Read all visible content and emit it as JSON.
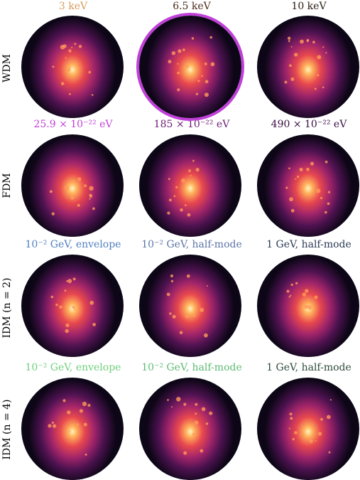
{
  "rows": [
    {
      "label": "WDM",
      "columns": [
        {
          "label": "3 keV",
          "color": "#d79b5b"
        },
        {
          "label": "6.5 keV",
          "color": "#4a2a1a"
        },
        {
          "label": "10 keV",
          "color": "#2a1a10"
        }
      ]
    },
    {
      "label": "FDM",
      "columns": [
        {
          "label": "25.9 × 10⁻²² eV",
          "color": "#c040d8"
        },
        {
          "label": "185 × 10⁻²² eV",
          "color": "#6a1c74"
        },
        {
          "label": "490 × 10⁻²² eV",
          "color": "#3a0e44"
        }
      ]
    },
    {
      "label": "IDM (n = 2)",
      "columns": [
        {
          "label": "10⁻² GeV, envelope",
          "color": "#4f7fc0"
        },
        {
          "label": "10⁻² GeV, half-mode",
          "color": "#5d74a6"
        },
        {
          "label": "1 GeV, half-mode",
          "color": "#2b3a55"
        }
      ]
    },
    {
      "label": "IDM (n = 4)",
      "columns": [
        {
          "label": "10⁻² GeV, envelope",
          "color": "#6fcf7a"
        },
        {
          "label": "10⁻² GeV, half-mode",
          "color": "#5dbb73"
        },
        {
          "label": "1 GeV, half-mode",
          "color": "#2e4a3a"
        }
      ]
    }
  ],
  "highlight": {
    "row": 0,
    "col": 1,
    "color": "#c040d8"
  }
}
